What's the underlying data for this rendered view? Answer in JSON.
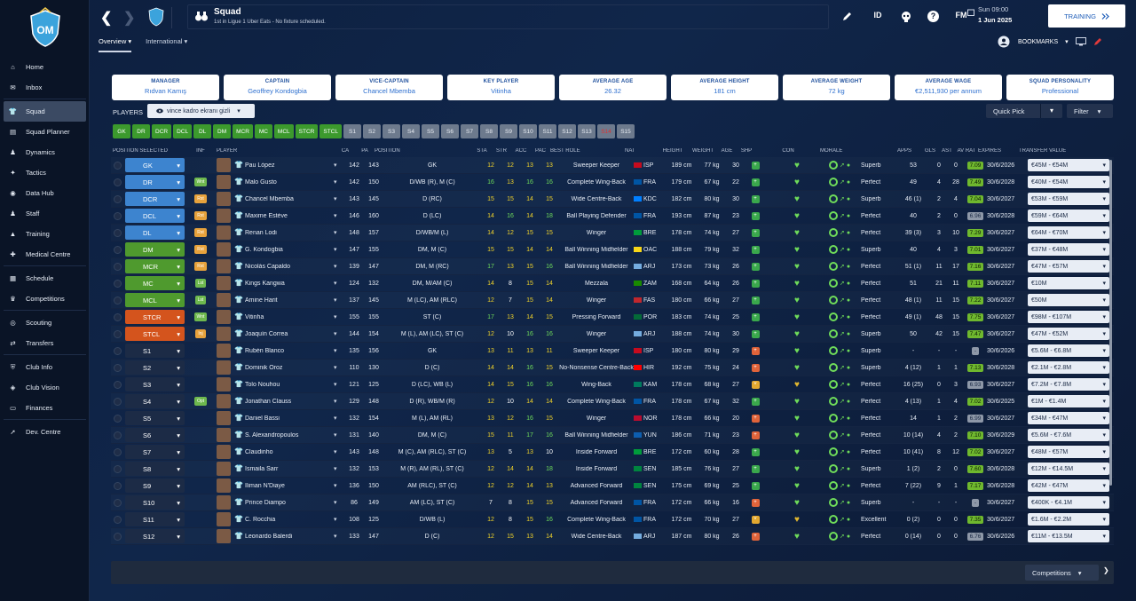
{
  "colors": {
    "accent": "#2d6fcf",
    "green": "#3c9a2d",
    "blue": "#3d84cf",
    "red": "#d4541d"
  },
  "sidebar": {
    "items": [
      {
        "label": "Home",
        "icon": "home-icon"
      },
      {
        "label": "Inbox",
        "icon": "mail-icon"
      },
      {
        "label": "Squad",
        "icon": "shirt-icon",
        "active": true
      },
      {
        "label": "Squad Planner",
        "icon": "planner-icon"
      },
      {
        "label": "Dynamics",
        "icon": "people-icon"
      },
      {
        "label": "Tactics",
        "icon": "tactics-icon"
      },
      {
        "label": "Data Hub",
        "icon": "data-icon"
      },
      {
        "label": "Staff",
        "icon": "staff-icon"
      },
      {
        "label": "Training",
        "icon": "cone-icon"
      },
      {
        "label": "Medical Centre",
        "icon": "medical-icon"
      },
      {
        "label": "Schedule",
        "icon": "calendar-icon"
      },
      {
        "label": "Competitions",
        "icon": "trophy-icon"
      },
      {
        "label": "Scouting",
        "icon": "binoculars-icon"
      },
      {
        "label": "Transfers",
        "icon": "transfer-icon"
      },
      {
        "label": "Club Info",
        "icon": "shield-icon"
      },
      {
        "label": "Club Vision",
        "icon": "vision-icon"
      },
      {
        "label": "Finances",
        "icon": "finance-icon"
      },
      {
        "label": "Dev. Centre",
        "icon": "dev-icon"
      }
    ]
  },
  "header": {
    "title": "Squad",
    "subtitle": "1st in Ligue 1 Uber Eats - No fixture scheduled.",
    "id_label": "ID",
    "fm_label": "FM",
    "day": "Sun 09:00",
    "date": "1 Jun 2025",
    "training": "TRAINING",
    "bookmarks": "BOOKMARKS",
    "back": "❮",
    "forward": "❯",
    "help": "?"
  },
  "tabs": [
    "Overview",
    "International"
  ],
  "cards": [
    {
      "label": "MANAGER",
      "value": "Rıdvan Kamış"
    },
    {
      "label": "CAPTAIN",
      "value": "Geoffrey Kondogbia"
    },
    {
      "label": "VICE-CAPTAIN",
      "value": "Chancel Mbemba"
    },
    {
      "label": "KEY PLAYER",
      "value": "Vitinha"
    },
    {
      "label": "AVERAGE AGE",
      "value": "26.32"
    },
    {
      "label": "AVERAGE HEIGHT",
      "value": "181 cm"
    },
    {
      "label": "AVERAGE WEIGHT",
      "value": "72 kg"
    },
    {
      "label": "AVERAGE WAGE",
      "value": "€2,511,930 per annum"
    },
    {
      "label": "SQUAD PERSONALITY",
      "value": "Professional"
    }
  ],
  "players_label": "PLAYERS",
  "view_select": "vince kadro ekranı gizli",
  "quick_pick": "Quick Pick",
  "filter": "Filter",
  "competitions": "Competitions",
  "chips": [
    {
      "t": "GK",
      "c": "g"
    },
    {
      "t": "DR",
      "c": "g"
    },
    {
      "t": "DCR",
      "c": "g"
    },
    {
      "t": "DCL",
      "c": "g"
    },
    {
      "t": "DL",
      "c": "g"
    },
    {
      "t": "DM",
      "c": "g"
    },
    {
      "t": "MCR",
      "c": "g"
    },
    {
      "t": "MC",
      "c": "g"
    },
    {
      "t": "MCL",
      "c": "g"
    },
    {
      "t": "STCR",
      "c": "g"
    },
    {
      "t": "STCL",
      "c": "g"
    },
    {
      "t": "S1",
      "c": "s"
    },
    {
      "t": "S2",
      "c": "s"
    },
    {
      "t": "S3",
      "c": "s"
    },
    {
      "t": "S4",
      "c": "s"
    },
    {
      "t": "S5",
      "c": "s"
    },
    {
      "t": "S6",
      "c": "s"
    },
    {
      "t": "S7",
      "c": "s"
    },
    {
      "t": "S8",
      "c": "s"
    },
    {
      "t": "S9",
      "c": "s"
    },
    {
      "t": "S10",
      "c": "s"
    },
    {
      "t": "S11",
      "c": "s"
    },
    {
      "t": "S12",
      "c": "s"
    },
    {
      "t": "S13",
      "c": "s"
    },
    {
      "t": "S14",
      "c": "r"
    },
    {
      "t": "S15",
      "c": "s"
    }
  ],
  "columns": [
    "POSITION SELECTED",
    "INF",
    "PLAYER",
    "CA",
    "PA",
    "POSITION",
    "STA",
    "STR",
    "ACC",
    "PAC",
    "BEST ROLE",
    "NAT",
    "HEIGHT",
    "WEIGHT",
    "AGE",
    "SHP",
    "CON",
    "MORALE",
    "APPS",
    "GLS",
    "AST",
    "AV RAT",
    "EXPIRES",
    "TRANSFER VALUE"
  ],
  "players": [
    {
      "ps": "GK",
      "pc": "blue",
      "inf": "",
      "name": "Pau López",
      "ca": "142",
      "pa": "143",
      "pos": "GK",
      "sta": "12",
      "str": "12",
      "acc": "13",
      "pac": "13",
      "role": "Sweeper Keeper",
      "nat": "ISP",
      "fc": "#c60b1e",
      "h": "189 cm",
      "w": "77 kg",
      "age": "30",
      "shp": "g",
      "mor": "Superb",
      "apps": "53",
      "gls": "0",
      "ast": "0",
      "rat": "7.09",
      "exp": "30/6/2026",
      "tv": "€45M - €54M"
    },
    {
      "ps": "DR",
      "pc": "blue",
      "inf": "Wnt",
      "name": "Malo Gusto",
      "ca": "142",
      "pa": "150",
      "pos": "D/WB (R), M (C)",
      "sta": "16",
      "str": "13",
      "acc": "16",
      "pac": "16",
      "role": "Complete Wing-Back",
      "nat": "FRA",
      "fc": "#0055a4",
      "h": "179 cm",
      "w": "67 kg",
      "age": "22",
      "shp": "g",
      "mor": "Perfect",
      "apps": "49",
      "gls": "4",
      "ast": "28",
      "rat": "7.49",
      "exp": "30/6/2028",
      "tv": "€40M - €54M"
    },
    {
      "ps": "DCR",
      "pc": "blue",
      "inf": "Rst",
      "name": "Chancel Mbemba",
      "ca": "143",
      "pa": "145",
      "pos": "D (RC)",
      "sta": "15",
      "str": "15",
      "acc": "14",
      "pac": "15",
      "role": "Wide Centre-Back",
      "nat": "KDC",
      "fc": "#007fff",
      "h": "182 cm",
      "w": "80 kg",
      "age": "30",
      "shp": "g",
      "mor": "Superb",
      "apps": "46 (1)",
      "gls": "2",
      "ast": "4",
      "rat": "7.04",
      "exp": "30/6/2027",
      "tv": "€53M - €59M"
    },
    {
      "ps": "DCL",
      "pc": "blue",
      "inf": "Rst",
      "name": "Maxime Estève",
      "ca": "146",
      "pa": "160",
      "pos": "D (LC)",
      "sta": "14",
      "str": "16",
      "acc": "14",
      "pac": "18",
      "role": "Ball Playing Defender",
      "nat": "FRA",
      "fc": "#0055a4",
      "h": "193 cm",
      "w": "87 kg",
      "age": "23",
      "shp": "g",
      "mor": "Perfect",
      "apps": "40",
      "gls": "2",
      "ast": "0",
      "rat": "6.96",
      "exp": "30/6/2028",
      "tv": "€59M - €64M"
    },
    {
      "ps": "DL",
      "pc": "blue",
      "inf": "Rst",
      "name": "Renan Lodi",
      "ca": "148",
      "pa": "157",
      "pos": "D/WB/M (L)",
      "sta": "14",
      "str": "12",
      "acc": "15",
      "pac": "15",
      "role": "Winger",
      "nat": "BRE",
      "fc": "#009c3b",
      "h": "178 cm",
      "w": "74 kg",
      "age": "27",
      "shp": "g",
      "mor": "Perfect",
      "apps": "39 (3)",
      "gls": "3",
      "ast": "10",
      "rat": "7.29",
      "exp": "30/6/2027",
      "tv": "€64M - €70M"
    },
    {
      "ps": "DM",
      "pc": "green",
      "inf": "Rst",
      "name": "G. Kondogbia",
      "ca": "147",
      "pa": "155",
      "pos": "DM, M (C)",
      "sta": "15",
      "str": "15",
      "acc": "14",
      "pac": "14",
      "role": "Ball Winning Midfielder",
      "nat": "OAC",
      "fc": "#f7d618",
      "h": "188 cm",
      "w": "79 kg",
      "age": "32",
      "shp": "g",
      "mor": "Superb",
      "apps": "40",
      "gls": "4",
      "ast": "3",
      "rat": "7.01",
      "exp": "30/6/2027",
      "tv": "€37M - €48M"
    },
    {
      "ps": "MCR",
      "pc": "green",
      "inf": "Rst",
      "name": "Nicolás Capaldo",
      "ca": "139",
      "pa": "147",
      "pos": "DM, M (RC)",
      "sta": "17",
      "str": "13",
      "acc": "15",
      "pac": "16",
      "role": "Ball Winning Midfielder",
      "nat": "ARJ",
      "fc": "#74acdf",
      "h": "173 cm",
      "w": "73 kg",
      "age": "26",
      "shp": "g",
      "mor": "Perfect",
      "apps": "51 (1)",
      "gls": "11",
      "ast": "17",
      "rat": "7.16",
      "exp": "30/6/2027",
      "tv": "€47M - €57M"
    },
    {
      "ps": "MC",
      "pc": "green",
      "inf": "Lst",
      "name": "Kings Kangwa",
      "ca": "124",
      "pa": "132",
      "pos": "DM, M/AM (C)",
      "sta": "14",
      "str": "8",
      "acc": "15",
      "pac": "14",
      "role": "Mezzala",
      "nat": "ZAM",
      "fc": "#198a00",
      "h": "168 cm",
      "w": "64 kg",
      "age": "26",
      "shp": "g",
      "mor": "Perfect",
      "apps": "51",
      "gls": "21",
      "ast": "11",
      "rat": "7.11",
      "exp": "30/6/2027",
      "tv": "€10M"
    },
    {
      "ps": "MCL",
      "pc": "green",
      "inf": "Lst",
      "name": "Amine Harit",
      "ca": "137",
      "pa": "145",
      "pos": "M (LC), AM (RLC)",
      "sta": "12",
      "str": "7",
      "acc": "15",
      "pac": "14",
      "role": "Winger",
      "nat": "FAS",
      "fc": "#c1272d",
      "h": "180 cm",
      "w": "66 kg",
      "age": "27",
      "shp": "g",
      "mor": "Perfect",
      "apps": "48 (1)",
      "gls": "11",
      "ast": "15",
      "rat": "7.22",
      "exp": "30/6/2027",
      "tv": "€50M"
    },
    {
      "ps": "STCR",
      "pc": "red",
      "inf": "Wnt",
      "name": "Vitinha",
      "ca": "155",
      "pa": "155",
      "pos": "ST (C)",
      "sta": "17",
      "str": "13",
      "acc": "14",
      "pac": "15",
      "role": "Pressing Forward",
      "nat": "POR",
      "fc": "#046a38",
      "h": "183 cm",
      "w": "74 kg",
      "age": "25",
      "shp": "g",
      "mor": "Perfect",
      "apps": "49 (1)",
      "gls": "48",
      "ast": "15",
      "rat": "7.75",
      "exp": "30/6/2027",
      "tv": "€98M - €107M"
    },
    {
      "ps": "STCL",
      "pc": "red",
      "inf": "Inj",
      "name": "Joaquín Correa",
      "ca": "144",
      "pa": "154",
      "pos": "M (L), AM (LC), ST (C)",
      "sta": "12",
      "str": "10",
      "acc": "16",
      "pac": "16",
      "role": "Winger",
      "nat": "ARJ",
      "fc": "#74acdf",
      "h": "188 cm",
      "w": "74 kg",
      "age": "30",
      "shp": "g",
      "mor": "Superb",
      "apps": "50",
      "gls": "42",
      "ast": "15",
      "rat": "7.47",
      "exp": "30/6/2027",
      "tv": "€47M - €52M"
    },
    {
      "ps": "S1",
      "pc": "sub",
      "inf": "",
      "name": "Rubén Blanco",
      "ca": "135",
      "pa": "156",
      "pos": "GK",
      "sta": "13",
      "str": "11",
      "acc": "13",
      "pac": "11",
      "role": "Sweeper Keeper",
      "nat": "ISP",
      "fc": "#c60b1e",
      "h": "180 cm",
      "w": "80 kg",
      "age": "29",
      "shp": "r",
      "mor": "Superb",
      "apps": "-",
      "gls": "-",
      "ast": "-",
      "rat": "-",
      "exp": "30/6/2026",
      "tv": "€5.6M - €6.8M"
    },
    {
      "ps": "S2",
      "pc": "sub",
      "inf": "",
      "name": "Dominik Oroz",
      "ca": "110",
      "pa": "130",
      "pos": "D (C)",
      "sta": "14",
      "str": "14",
      "acc": "16",
      "pac": "15",
      "role": "No-Nonsense Centre-Back",
      "nat": "HIR",
      "fc": "#ff0000",
      "h": "192 cm",
      "w": "75 kg",
      "age": "24",
      "shp": "r",
      "mor": "Superb",
      "apps": "4 (12)",
      "gls": "1",
      "ast": "1",
      "rat": "7.13",
      "exp": "30/6/2028",
      "tv": "€2.1M - €2.8M"
    },
    {
      "ps": "S3",
      "pc": "sub",
      "inf": "",
      "name": "Tolo Nouhou",
      "ca": "121",
      "pa": "125",
      "pos": "D (LC), WB (L)",
      "sta": "14",
      "str": "15",
      "acc": "16",
      "pac": "16",
      "role": "Wing-Back",
      "nat": "KAM",
      "fc": "#007a5e",
      "h": "178 cm",
      "w": "68 kg",
      "age": "27",
      "shp": "y",
      "mor": "Perfect",
      "apps": "16 (25)",
      "gls": "0",
      "ast": "3",
      "rat": "6.93",
      "exp": "30/6/2027",
      "tv": "€7.2M - €7.8M"
    },
    {
      "ps": "S4",
      "pc": "sub",
      "inf": "Opt",
      "name": "Jonathan Clauss",
      "ca": "129",
      "pa": "148",
      "pos": "D (R), WB/M (R)",
      "sta": "12",
      "str": "10",
      "acc": "14",
      "pac": "14",
      "role": "Complete Wing-Back",
      "nat": "FRA",
      "fc": "#0055a4",
      "h": "178 cm",
      "w": "67 kg",
      "age": "32",
      "shp": "g",
      "mor": "Perfect",
      "apps": "4 (13)",
      "gls": "1",
      "ast": "4",
      "rat": "7.02",
      "exp": "30/6/2025",
      "tv": "€1M - €1.4M"
    },
    {
      "ps": "S5",
      "pc": "sub",
      "inf": "",
      "name": "Daniel Bassi",
      "ca": "132",
      "pa": "154",
      "pos": "M (L), AM (RL)",
      "sta": "13",
      "str": "12",
      "acc": "16",
      "pac": "15",
      "role": "Winger",
      "nat": "NOR",
      "fc": "#ba0c2f",
      "h": "178 cm",
      "w": "66 kg",
      "age": "20",
      "shp": "r",
      "mor": "Perfect",
      "apps": "14",
      "gls": "1",
      "ast": "2",
      "rat": "6.99",
      "exp": "30/6/2027",
      "tv": "€34M - €47M"
    },
    {
      "ps": "S6",
      "pc": "sub",
      "inf": "",
      "name": "S. Alexandropoulos",
      "ca": "131",
      "pa": "140",
      "pos": "DM, M (C)",
      "sta": "15",
      "str": "11",
      "acc": "17",
      "pac": "16",
      "role": "Ball Winning Midfielder",
      "nat": "YUN",
      "fc": "#0d5eaf",
      "h": "186 cm",
      "w": "71 kg",
      "age": "23",
      "shp": "r",
      "mor": "Perfect",
      "apps": "10 (14)",
      "gls": "4",
      "ast": "2",
      "rat": "7.10",
      "exp": "30/6/2029",
      "tv": "€5.6M - €7.6M"
    },
    {
      "ps": "S7",
      "pc": "sub",
      "inf": "",
      "name": "Claudinho",
      "ca": "143",
      "pa": "148",
      "pos": "M (C), AM (RLC), ST (C)",
      "sta": "13",
      "str": "5",
      "acc": "13",
      "pac": "10",
      "role": "Inside Forward",
      "nat": "BRE",
      "fc": "#009c3b",
      "h": "172 cm",
      "w": "60 kg",
      "age": "28",
      "shp": "g",
      "mor": "Perfect",
      "apps": "10 (41)",
      "gls": "8",
      "ast": "12",
      "rat": "7.02",
      "exp": "30/6/2027",
      "tv": "€48M - €57M"
    },
    {
      "ps": "S8",
      "pc": "sub",
      "inf": "",
      "name": "Ismaila Sarr",
      "ca": "132",
      "pa": "153",
      "pos": "M (R), AM (RL), ST (C)",
      "sta": "12",
      "str": "14",
      "acc": "14",
      "pac": "18",
      "role": "Inside Forward",
      "nat": "SEN",
      "fc": "#00853f",
      "h": "185 cm",
      "w": "76 kg",
      "age": "27",
      "shp": "g",
      "mor": "Superb",
      "apps": "1 (2)",
      "gls": "2",
      "ast": "0",
      "rat": "7.60",
      "exp": "30/6/2028",
      "tv": "€12M - €14.5M"
    },
    {
      "ps": "S9",
      "pc": "sub",
      "inf": "",
      "name": "Iliman N'Diaye",
      "ca": "136",
      "pa": "150",
      "pos": "AM (RLC), ST (C)",
      "sta": "12",
      "str": "12",
      "acc": "14",
      "pac": "13",
      "role": "Advanced Forward",
      "nat": "SEN",
      "fc": "#00853f",
      "h": "175 cm",
      "w": "69 kg",
      "age": "25",
      "shp": "g",
      "mor": "Perfect",
      "apps": "7 (22)",
      "gls": "9",
      "ast": "1",
      "rat": "7.17",
      "exp": "30/6/2028",
      "tv": "€42M - €47M"
    },
    {
      "ps": "S10",
      "pc": "sub",
      "inf": "",
      "name": "Prince Diampo",
      "ca": "86",
      "pa": "149",
      "pos": "AM (LC), ST (C)",
      "sta": "7",
      "str": "8",
      "acc": "15",
      "pac": "15",
      "role": "Advanced Forward",
      "nat": "FRA",
      "fc": "#0055a4",
      "h": "172 cm",
      "w": "66 kg",
      "age": "16",
      "shp": "r",
      "mor": "Superb",
      "apps": "-",
      "gls": "-",
      "ast": "-",
      "rat": "-",
      "exp": "30/6/2027",
      "tv": "€400K - €4.1M"
    },
    {
      "ps": "S11",
      "pc": "sub",
      "inf": "",
      "name": "C. Rocchia",
      "ca": "108",
      "pa": "125",
      "pos": "D/WB (L)",
      "sta": "12",
      "str": "8",
      "acc": "15",
      "pac": "16",
      "role": "Complete Wing-Back",
      "nat": "FRA",
      "fc": "#0055a4",
      "h": "172 cm",
      "w": "70 kg",
      "age": "27",
      "shp": "y",
      "mor": "Excellent",
      "apps": "0 (2)",
      "gls": "0",
      "ast": "0",
      "rat": "7.35",
      "exp": "30/6/2027",
      "tv": "€1.6M - €2.2M"
    },
    {
      "ps": "S12",
      "pc": "sub",
      "inf": "",
      "name": "Leonardo Balerdi",
      "ca": "133",
      "pa": "147",
      "pos": "D (C)",
      "sta": "12",
      "str": "15",
      "acc": "13",
      "pac": "14",
      "role": "Wide Centre-Back",
      "nat": "ARJ",
      "fc": "#74acdf",
      "h": "187 cm",
      "w": "80 kg",
      "age": "26",
      "shp": "r",
      "mor": "Perfect",
      "apps": "0 (14)",
      "gls": "0",
      "ast": "0",
      "rat": "6.76",
      "exp": "30/6/2026",
      "tv": "€11M - €13.5M"
    }
  ]
}
